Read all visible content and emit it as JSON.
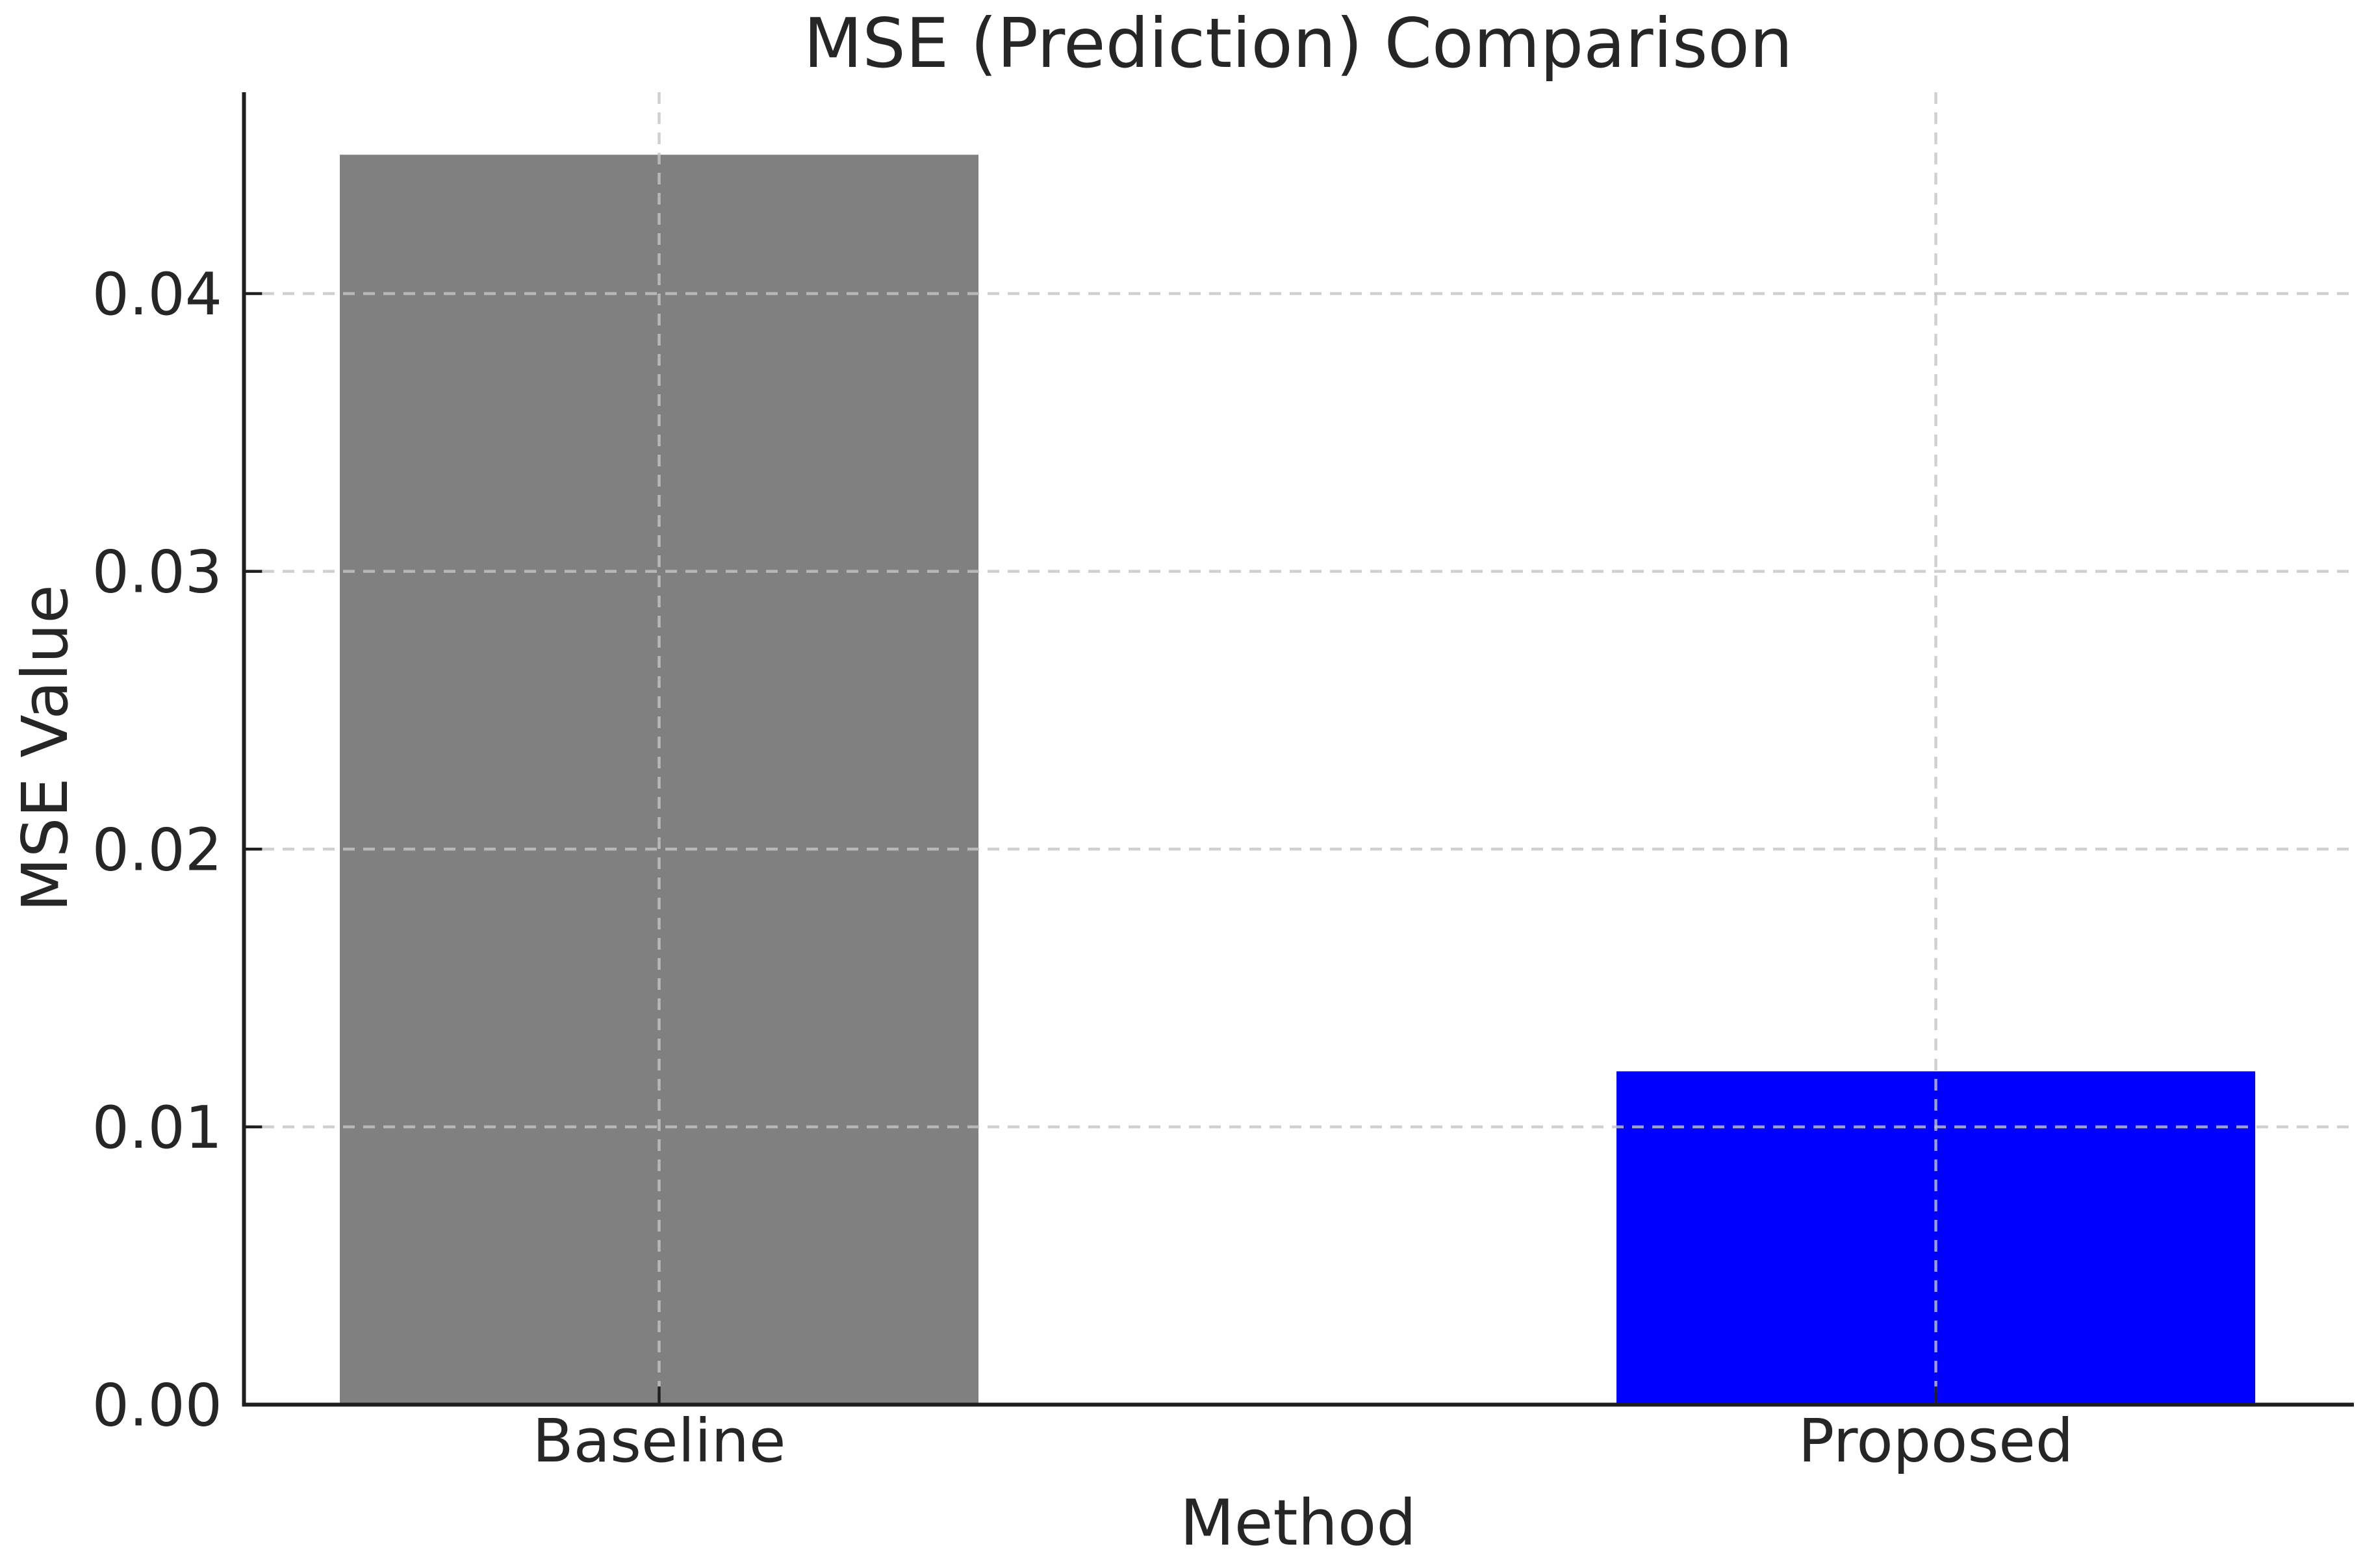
{
  "chart_data": {
    "type": "bar",
    "title": "MSE (Prediction) Comparison",
    "xlabel": "Method",
    "ylabel": "MSE Value",
    "categories": [
      "Baseline",
      "Proposed"
    ],
    "values": [
      0.045,
      0.012
    ],
    "bar_colors": [
      "#808080",
      "#0000ff"
    ],
    "ytick_values": [
      0,
      0.01,
      0.02,
      0.03,
      0.04
    ],
    "ytick_labels": [
      "0.00",
      "0.01",
      "0.02",
      "0.03",
      "0.04"
    ],
    "ylim": [
      0,
      0.04725
    ],
    "grid": "dashed",
    "grid_on": true,
    "legend_position": "none",
    "background_color": "#ffffff",
    "grid_color": "#c4c4c4",
    "axis_color": "#1f1f1f",
    "text_color": "#262626"
  }
}
